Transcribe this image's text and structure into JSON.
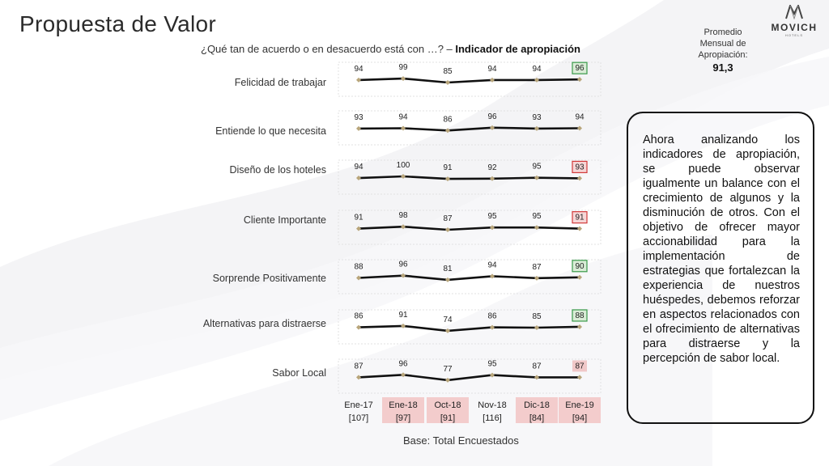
{
  "slide": {
    "title": "Propuesta de Valor",
    "question": "¿Qué tan de acuerdo o en desacuerdo está con …? – ",
    "question_bold": "Indicador de apropiación",
    "brand": "MOVICH",
    "brand_sub": "HOTELS",
    "average": {
      "label_lines": [
        "Promedio",
        "Mensual de",
        "Apropiación:"
      ],
      "value": "91,3"
    },
    "base": "Base: Total Encuestados",
    "commentary": "Ahora analizando los indicadores de apropiación, se puede observar igualmente un balance con el crecimiento de algunos y la disminución de otros. Con el objetivo de ofrecer mayor accionabilidad para la implementación de estrategias que fortalezcan la experiencia de nuestros huéspedes, debemos reforzar en aspectos relacionados con el ofrecimiento de alternativas para distraerse y la percepción de sabor local."
  },
  "colors": {
    "line": "#111111",
    "marker": "#b8a57a",
    "highlight_green_border": "#3a9a4a",
    "highlight_green_fill": "#d9ecd6",
    "highlight_red_border": "#d23a3a",
    "highlight_red_fill": "#f6d6d6",
    "highlight_pink_fill": "#f0c8c8",
    "header_pink": "#f3cccc"
  },
  "chart_data": {
    "type": "line",
    "categories": [
      "Ene-17",
      "Ene-18",
      "Oct-18",
      "Nov-18",
      "Dic-18",
      "Ene-19"
    ],
    "sample_sizes": [
      "[107]",
      "[97]",
      "[91]",
      "[116]",
      "[84]",
      "[94]"
    ],
    "highlighted_categories": [
      "Ene-18",
      "Oct-18",
      "Dic-18",
      "Ene-19"
    ],
    "series": [
      {
        "name": "Felicidad de trabajar",
        "values": [
          94,
          99,
          85,
          94,
          94,
          96
        ],
        "last_highlight": "green"
      },
      {
        "name": "Entiende lo que necesita",
        "values": [
          93,
          94,
          86,
          96,
          93,
          94
        ],
        "last_highlight": "none"
      },
      {
        "name": "Diseño de los hoteles",
        "values": [
          94,
          100,
          91,
          92,
          95,
          93
        ],
        "last_highlight": "red"
      },
      {
        "name": "Cliente Importante",
        "values": [
          91,
          98,
          87,
          95,
          95,
          91
        ],
        "last_highlight": "red"
      },
      {
        "name": "Sorprende Positivamente",
        "values": [
          88,
          96,
          81,
          94,
          87,
          90
        ],
        "last_highlight": "green"
      },
      {
        "name": "Alternativas para distraerse",
        "values": [
          86,
          91,
          74,
          86,
          85,
          88
        ],
        "last_highlight": "green"
      },
      {
        "name": "Sabor Local",
        "values": [
          87,
          96,
          77,
          95,
          87,
          87
        ],
        "last_highlight": "pink"
      }
    ]
  }
}
